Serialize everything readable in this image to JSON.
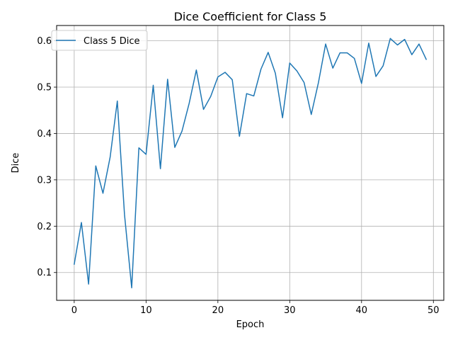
{
  "chart_data": {
    "type": "line",
    "title": "Dice Coefficient for Class 5",
    "xlabel": "Epoch",
    "ylabel": "Dice",
    "xlim": [
      -2.45,
      51.45
    ],
    "ylim": [
      0.04,
      0.633
    ],
    "xticks": [
      0,
      10,
      20,
      30,
      40,
      50
    ],
    "yticks": [
      0.1,
      0.2,
      0.3,
      0.4,
      0.5,
      0.6
    ],
    "xtick_labels": [
      "0",
      "10",
      "20",
      "30",
      "40",
      "50"
    ],
    "ytick_labels": [
      "0.1",
      "0.2",
      "0.3",
      "0.4",
      "0.5",
      "0.6"
    ],
    "grid": true,
    "legend_position": "top-left",
    "series": [
      {
        "name": "Class 5 Dice",
        "color": "#1f77b4",
        "x": [
          0,
          1,
          2,
          3,
          4,
          5,
          6,
          7,
          8,
          9,
          10,
          11,
          12,
          13,
          14,
          15,
          16,
          17,
          18,
          19,
          20,
          21,
          22,
          23,
          24,
          25,
          26,
          27,
          28,
          29,
          30,
          31,
          32,
          33,
          34,
          35,
          36,
          37,
          38,
          39,
          40,
          41,
          42,
          43,
          44,
          45,
          46,
          47,
          48,
          49
        ],
        "y": [
          0.118,
          0.208,
          0.075,
          0.33,
          0.271,
          0.349,
          0.47,
          0.225,
          0.067,
          0.369,
          0.355,
          0.504,
          0.324,
          0.517,
          0.37,
          0.405,
          0.465,
          0.537,
          0.452,
          0.48,
          0.522,
          0.532,
          0.516,
          0.394,
          0.486,
          0.481,
          0.539,
          0.575,
          0.53,
          0.434,
          0.552,
          0.535,
          0.51,
          0.441,
          0.51,
          0.593,
          0.541,
          0.574,
          0.574,
          0.562,
          0.508,
          0.595,
          0.523,
          0.546,
          0.605,
          0.591,
          0.603,
          0.57,
          0.593,
          0.56
        ]
      }
    ]
  }
}
